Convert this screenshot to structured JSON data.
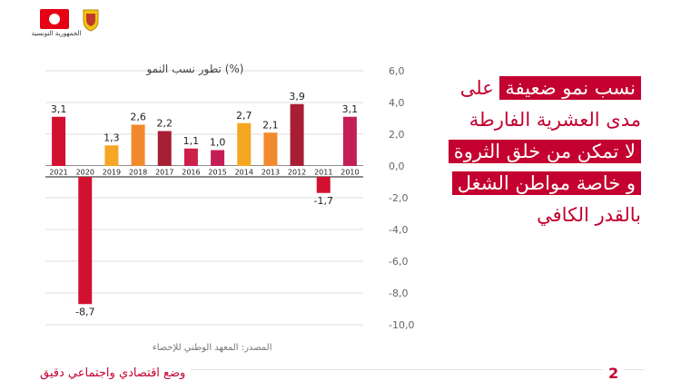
{
  "header": {
    "country_label": "الجمهورية التونسية"
  },
  "headline": {
    "lines": [
      {
        "highlight": "نسب نمو ضعيفة",
        "rest": " على"
      },
      {
        "highlight": "",
        "rest": "مدى العشرية الفارطة"
      },
      {
        "highlight": "لا تمكن من خلق الثروة",
        "rest": ""
      },
      {
        "highlight": "و خاصة  مواطن الشغل",
        "rest": ""
      },
      {
        "highlight": "",
        "rest": "بالقدر الكافي"
      }
    ]
  },
  "source": "المصدر: المعهد الوطني للإحصاء",
  "footer": {
    "text": "وضع اقتصادي واجتماعي دقيق",
    "page": "2"
  },
  "colors": {
    "accent": "#c3002f"
  },
  "chart_data": {
    "type": "bar",
    "title": "تطور نسب النمو (%)",
    "categories": [
      "2021",
      "2020",
      "2019",
      "2018",
      "2017",
      "2016",
      "2015",
      "2014",
      "2013",
      "2012",
      "2011",
      "2010"
    ],
    "values": [
      3.1,
      -8.7,
      1.3,
      2.6,
      2.2,
      1.1,
      1.0,
      2.7,
      2.1,
      3.9,
      -1.7,
      3.1
    ],
    "value_labels": [
      "3,1",
      "-8,7",
      "1,3",
      "2,6",
      "2,2",
      "1,1",
      "1,0",
      "2,7",
      "2,1",
      "3,9",
      "-1,7",
      "3,1"
    ],
    "bar_colors": [
      "#d2102f",
      "#d2102f",
      "#f5a623",
      "#f28a2d",
      "#a81e35",
      "#cc1f4a",
      "#c41f55",
      "#f5a623",
      "#f28a2d",
      "#a81e35",
      "#d2102f",
      "#c41f55"
    ],
    "ylim": [
      -10,
      6
    ],
    "yticks": [
      "6,0",
      "4,0",
      "2,0",
      "0,0",
      "-2,0",
      "-4,0",
      "-6,0",
      "-8,0",
      "-10,0"
    ],
    "grid": true
  }
}
